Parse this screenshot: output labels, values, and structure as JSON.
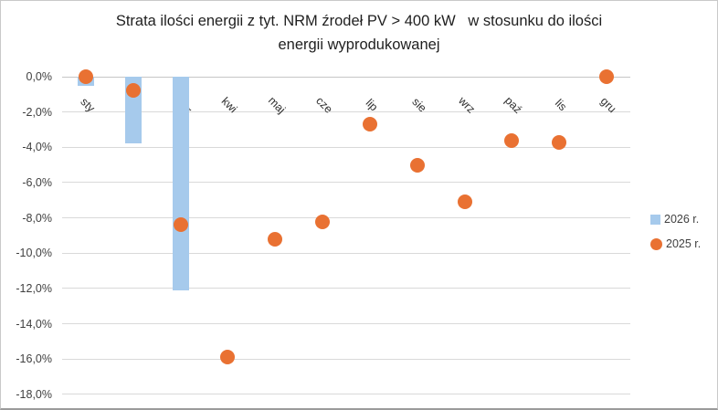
{
  "window": {
    "background": "#ffffff",
    "border_color": "#c9c9c9"
  },
  "colors": {
    "bar_blue": "#a6caec",
    "dot_orange": "#e97132",
    "gridline": "#d9d9d9",
    "axis_text": "#3f3f3f",
    "title_text": "#1f1f1f"
  },
  "chart_data": {
    "type": "combo",
    "subtypes": [
      "bar",
      "scatter"
    ],
    "title_line1": "Strata ilości energii z tyt. NRM źrodeł PV > 400 kW   w stosunku do ilości",
    "title_line2": "energii wyprodukowanej",
    "categories": [
      "sty",
      "lut",
      "mar",
      "kwi",
      "maj",
      "cze",
      "lip",
      "sie",
      "wrz",
      "paź",
      "lis",
      "gru"
    ],
    "series": [
      {
        "name": "2026 r.",
        "type": "bar",
        "color": "#a6caec",
        "values": [
          -0.5,
          -3.8,
          -12.1,
          null,
          null,
          null,
          null,
          null,
          null,
          null,
          null,
          null
        ]
      },
      {
        "name": "2025 r.",
        "type": "scatter",
        "color": "#e97132",
        "values": [
          0.0,
          -0.8,
          -8.4,
          -15.9,
          -9.2,
          -8.2,
          -2.7,
          -5.0,
          -7.1,
          -3.6,
          -3.7,
          0.0
        ]
      }
    ],
    "y_axis": {
      "min": -18,
      "max": 0,
      "step": 2,
      "tick_labels": [
        "0,0%",
        "-2,0%",
        "-4,0%",
        "-6,0%",
        "-8,0%",
        "-10,0%",
        "-12,0%",
        "-14,0%",
        "-16,0%",
        "-18,0%"
      ]
    },
    "grid": true,
    "legend_position": "right"
  },
  "legend": {
    "items": [
      {
        "label": "2026 r.",
        "marker": "square",
        "color": "#a6caec"
      },
      {
        "label": "2025 r.",
        "marker": "circle",
        "color": "#e97132"
      }
    ]
  }
}
